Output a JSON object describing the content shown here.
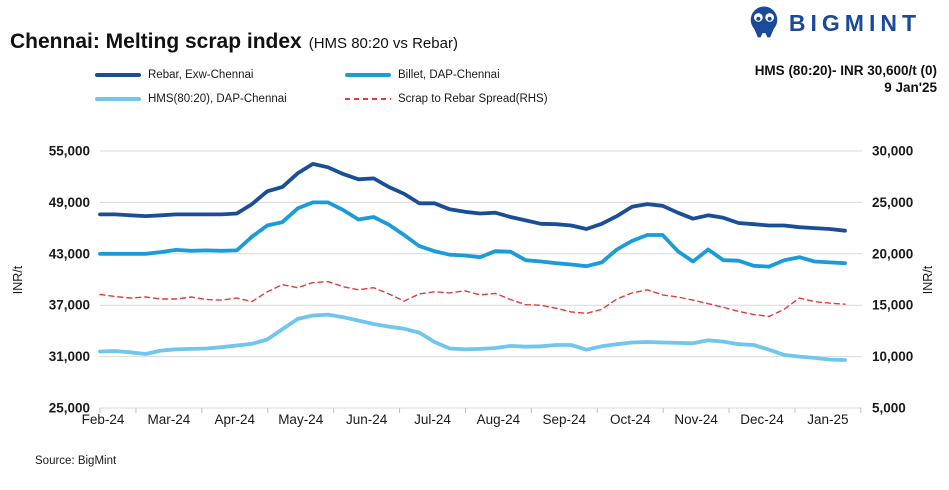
{
  "header": {
    "title": "Chennai: Melting scrap index",
    "subtitle": "(HMS 80:20 vs Rebar)",
    "brand": "BIGMINT",
    "latest_label": "HMS (80:20)- INR 30,600/t (0)",
    "latest_date": "9 Jan'25"
  },
  "source": "Source: BigMint",
  "colors": {
    "brand_navy": "#1b4a9b",
    "grid": "#d9d9d9",
    "text": "#1a1a1a"
  },
  "chart_data": {
    "type": "line",
    "title": "Chennai: Melting scrap index (HMS 80:20 vs Rebar)",
    "grid": "horizontal",
    "legend_position": "top",
    "x_labels": [
      "Feb-24",
      "Mar-24",
      "Apr-24",
      "May-24",
      "Jun-24",
      "Jul-24",
      "Aug-24",
      "Sep-24",
      "Oct-24",
      "Nov-24",
      "Dec-24",
      "Jan-25"
    ],
    "y_left": {
      "label": "INR/t",
      "min": 25000,
      "max": 55000,
      "ticks": [
        25000,
        31000,
        37000,
        43000,
        49000,
        55000
      ]
    },
    "y_right": {
      "label": "INR/t",
      "min": 5000,
      "max": 30000,
      "ticks": [
        5000,
        10000,
        15000,
        20000,
        25000,
        30000
      ]
    },
    "frequency": "weekly",
    "series": [
      {
        "id": "rebar",
        "name": "Rebar, Exw-Chennai",
        "axis": "left",
        "style": "solid",
        "color": "#1a4e96",
        "values": [
          47600,
          47600,
          47500,
          47400,
          47500,
          47600,
          47600,
          47600,
          47600,
          47700,
          48800,
          50300,
          50800,
          52400,
          53500,
          53100,
          52300,
          51700,
          51800,
          50800,
          50000,
          48900,
          48900,
          48200,
          47900,
          47700,
          47800,
          47300,
          46900,
          46500,
          46450,
          46300,
          45900,
          46500,
          47400,
          48500,
          48800,
          48600,
          47800,
          47100,
          47500,
          47200,
          46600,
          46450,
          46300,
          46300,
          46100,
          46000,
          45900,
          45700
        ]
      },
      {
        "id": "billet",
        "name": "Billet, DAP-Chennai",
        "axis": "left",
        "style": "solid",
        "color": "#199cd8",
        "values": [
          43000,
          43000,
          43000,
          43000,
          43200,
          43450,
          43350,
          43400,
          43350,
          43400,
          45000,
          46300,
          46700,
          48300,
          49000,
          49000,
          48100,
          47000,
          47300,
          46400,
          45200,
          43900,
          43300,
          42900,
          42800,
          42600,
          43300,
          43250,
          42250,
          42100,
          41900,
          41750,
          41550,
          42000,
          43500,
          44500,
          45200,
          45200,
          43300,
          42100,
          43500,
          42250,
          42200,
          41600,
          41500,
          42250,
          42600,
          42100,
          42000,
          41900
        ]
      },
      {
        "id": "hms",
        "name": "HMS(80:20), DAP-Chennai",
        "axis": "left",
        "style": "solid",
        "color": "#70c6ec",
        "values": [
          31600,
          31650,
          31500,
          31300,
          31700,
          31850,
          31900,
          31950,
          32100,
          32300,
          32500,
          33000,
          34200,
          35400,
          35800,
          35900,
          35600,
          35200,
          34800,
          34500,
          34250,
          33800,
          32700,
          31950,
          31850,
          31900,
          32000,
          32250,
          32150,
          32200,
          32350,
          32350,
          31800,
          32200,
          32450,
          32650,
          32700,
          32650,
          32600,
          32550,
          32900,
          32750,
          32450,
          32350,
          31800,
          31200,
          31000,
          30850,
          30650,
          30600
        ]
      },
      {
        "id": "spread",
        "name": "Scrap to Rebar Spread(RHS)",
        "axis": "right",
        "style": "dashed",
        "color": "#e23b3c",
        "values": [
          16050,
          15850,
          15700,
          15800,
          15600,
          15600,
          15800,
          15550,
          15500,
          15700,
          15350,
          16300,
          17000,
          16700,
          17200,
          17300,
          16800,
          16500,
          16700,
          16100,
          15400,
          16100,
          16300,
          16200,
          16400,
          16000,
          16150,
          15550,
          15050,
          15000,
          14700,
          14350,
          14200,
          14600,
          15600,
          16200,
          16500,
          16000,
          15800,
          15500,
          15150,
          14800,
          14400,
          14100,
          13900,
          14600,
          15700,
          15350,
          15200,
          15100
        ]
      }
    ]
  }
}
